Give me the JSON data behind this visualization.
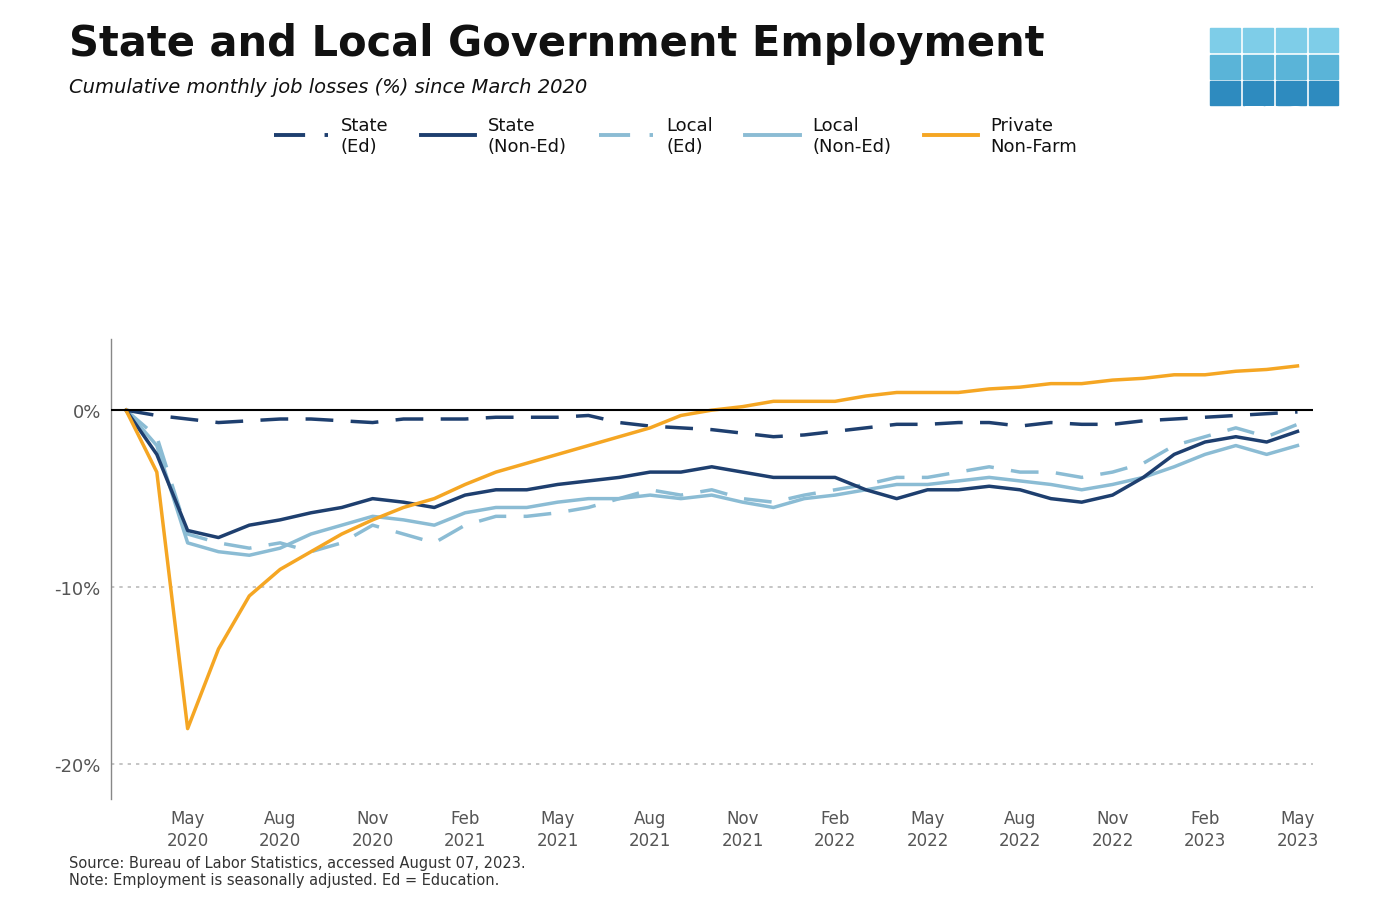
{
  "title": "State and Local Government Employment",
  "subtitle": "Cumulative monthly job losses (%) since March 2020",
  "source_note": "Source: Bureau of Labor Statistics, accessed August 07, 2023.\nNote: Employment is seasonally adjusted. Ed = Education.",
  "background_color": "#ffffff",
  "title_color": "#111111",
  "subtitle_color": "#111111",
  "x_tick_labels": [
    "May\n2020",
    "Aug\n2020",
    "Nov\n2020",
    "Feb\n2021",
    "May\n2021",
    "Aug\n2021",
    "Nov\n2021",
    "Feb\n2022",
    "May\n2022",
    "Aug\n2022",
    "Nov\n2022",
    "Feb\n2023",
    "May\n2023"
  ],
  "series": {
    "state_ed": {
      "label": "State\n(Ed)",
      "color": "#1e3f6f",
      "linestyle": "dashed",
      "linewidth": 2.5,
      "values": [
        0.0,
        -0.3,
        -0.5,
        -0.7,
        -0.6,
        -0.5,
        -0.5,
        -0.6,
        -0.7,
        -0.5,
        -0.5,
        -0.5,
        -0.4,
        -0.4,
        -0.4,
        -0.3,
        -0.7,
        -0.9,
        -1.0,
        -1.1,
        -1.3,
        -1.5,
        -1.4,
        -1.2,
        -1.0,
        -0.8,
        -0.8,
        -0.7,
        -0.7,
        -0.9,
        -0.7,
        -0.8,
        -0.8,
        -0.6,
        -0.5,
        -0.4,
        -0.3,
        -0.2,
        -0.1
      ]
    },
    "state_noned": {
      "label": "State\n(Non-Ed)",
      "color": "#1e3f6f",
      "linestyle": "solid",
      "linewidth": 2.5,
      "values": [
        0.0,
        -2.5,
        -6.8,
        -7.2,
        -6.5,
        -6.2,
        -5.8,
        -5.5,
        -5.0,
        -5.2,
        -5.5,
        -4.8,
        -4.5,
        -4.5,
        -4.2,
        -4.0,
        -3.8,
        -3.5,
        -3.5,
        -3.2,
        -3.5,
        -3.8,
        -3.8,
        -3.8,
        -4.5,
        -5.0,
        -4.5,
        -4.5,
        -4.3,
        -4.5,
        -5.0,
        -5.2,
        -4.8,
        -3.8,
        -2.5,
        -1.8,
        -1.5,
        -1.8,
        -1.2
      ]
    },
    "local_ed": {
      "label": "Local\n(Ed)",
      "color": "#8bbcd4",
      "linestyle": "dashed",
      "linewidth": 2.5,
      "values": [
        0.0,
        -1.5,
        -7.0,
        -7.5,
        -7.8,
        -7.5,
        -8.0,
        -7.5,
        -6.5,
        -7.0,
        -7.5,
        -6.5,
        -6.0,
        -6.0,
        -5.8,
        -5.5,
        -5.0,
        -4.5,
        -4.8,
        -4.5,
        -5.0,
        -5.2,
        -4.8,
        -4.5,
        -4.2,
        -3.8,
        -3.8,
        -3.5,
        -3.2,
        -3.5,
        -3.5,
        -3.8,
        -3.5,
        -3.0,
        -2.0,
        -1.5,
        -1.0,
        -1.5,
        -0.8
      ]
    },
    "local_noned": {
      "label": "Local\n(Non-Ed)",
      "color": "#8bbcd4",
      "linestyle": "solid",
      "linewidth": 2.5,
      "values": [
        0.0,
        -2.0,
        -7.5,
        -8.0,
        -8.2,
        -7.8,
        -7.0,
        -6.5,
        -6.0,
        -6.2,
        -6.5,
        -5.8,
        -5.5,
        -5.5,
        -5.2,
        -5.0,
        -5.0,
        -4.8,
        -5.0,
        -4.8,
        -5.2,
        -5.5,
        -5.0,
        -4.8,
        -4.5,
        -4.2,
        -4.2,
        -4.0,
        -3.8,
        -4.0,
        -4.2,
        -4.5,
        -4.2,
        -3.8,
        -3.2,
        -2.5,
        -2.0,
        -2.5,
        -2.0
      ]
    },
    "private_nonfarm": {
      "label": "Private\nNon-Farm",
      "color": "#f5a623",
      "linestyle": "solid",
      "linewidth": 2.5,
      "values": [
        0.0,
        -3.5,
        -18.0,
        -13.5,
        -10.5,
        -9.0,
        -8.0,
        -7.0,
        -6.2,
        -5.5,
        -5.0,
        -4.2,
        -3.5,
        -3.0,
        -2.5,
        -2.0,
        -1.5,
        -1.0,
        -0.3,
        0.0,
        0.2,
        0.5,
        0.5,
        0.5,
        0.8,
        1.0,
        1.0,
        1.0,
        1.2,
        1.3,
        1.5,
        1.5,
        1.7,
        1.8,
        2.0,
        2.0,
        2.2,
        2.3,
        2.5
      ]
    }
  },
  "ylim": [
    -22,
    4
  ],
  "yticks": [
    0,
    -10,
    -20
  ],
  "ytick_labels": [
    "0%",
    "-10%",
    "-20%"
  ],
  "grid_color": "#bbbbbb",
  "zero_line_color": "#000000",
  "n_points": 39,
  "tick_month_positions": [
    2,
    5,
    8,
    11,
    14,
    17,
    20,
    23,
    26,
    29,
    32,
    35,
    38
  ],
  "logo_top_row": [
    "#5bbcd6",
    "#5bbcd6",
    "#5bbcd6",
    "#5bbcd6"
  ],
  "logo_bottom_rows": [
    "#1e5f8e",
    "#1e5f8e",
    "#1e5f8e",
    "#1e5f8e"
  ],
  "logo_bg": "#1e4f7e"
}
